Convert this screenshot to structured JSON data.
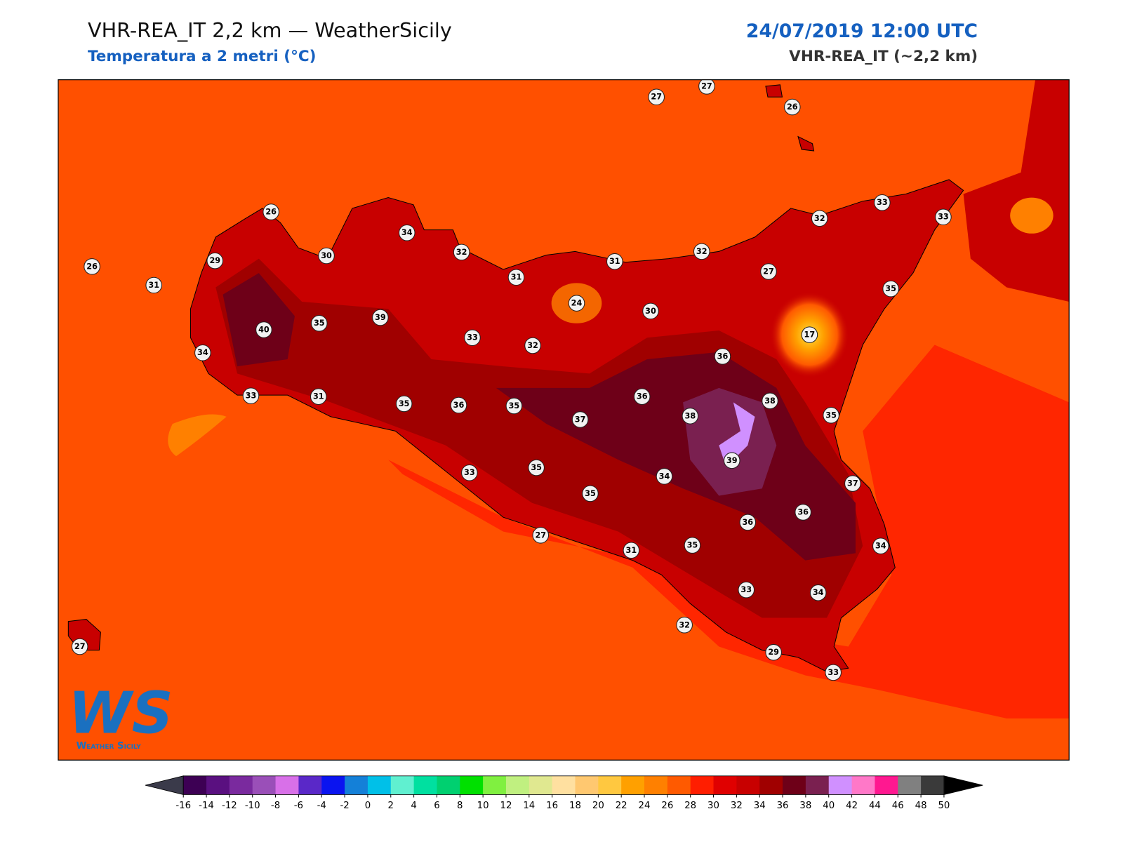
{
  "header": {
    "title": "VHR-REA_IT 2,2 km — WeatherSicily",
    "subtitle": "Temperatura a 2 metri (°C)",
    "date": "24/07/2019 12:00 UTC",
    "model": "VHR-REA_IT (~2,2 km)"
  },
  "stations": [
    27,
    27,
    26,
    26,
    29,
    26,
    31,
    30,
    34,
    32,
    31,
    31,
    32,
    33,
    32,
    33,
    27,
    35,
    24,
    30,
    17,
    39,
    35,
    40,
    34,
    33,
    32,
    36,
    33,
    31,
    35,
    36,
    35,
    37,
    36,
    38,
    38,
    35,
    39,
    33,
    35,
    35,
    34,
    37,
    36,
    36,
    27,
    31,
    35,
    34,
    33,
    34,
    32,
    29,
    33,
    27
  ],
  "colorbar": {
    "ticks": [
      -16,
      -14,
      -12,
      -10,
      -8,
      -6,
      -4,
      -2,
      0,
      2,
      4,
      6,
      8,
      10,
      12,
      14,
      16,
      18,
      20,
      22,
      24,
      26,
      28,
      30,
      32,
      34,
      36,
      38,
      40,
      42,
      44,
      46,
      48,
      50
    ],
    "colors": [
      "#3d0054",
      "#5a1080",
      "#7a2a9e",
      "#9a4fb8",
      "#d870e8",
      "#5a28c8",
      "#0a14f0",
      "#1480d8",
      "#00c0e8",
      "#60f0d0",
      "#00e0a0",
      "#00d070",
      "#00e000",
      "#80f040",
      "#c0f080",
      "#e0e890",
      "#ffe0a0",
      "#ffc870",
      "#ffc840",
      "#ffa000",
      "#ff8000",
      "#ff5a00",
      "#ff1e00",
      "#e00000",
      "#c80000",
      "#a00000",
      "#6e0018",
      "#7a2050",
      "#d090ff",
      "#ff78c8",
      "#ff1890",
      "#808080",
      "#3a3a3a"
    ],
    "under": "#3a3a4a",
    "over": "#000000"
  },
  "logo": {
    "mark": "WS",
    "name": "Weather Sicily"
  }
}
